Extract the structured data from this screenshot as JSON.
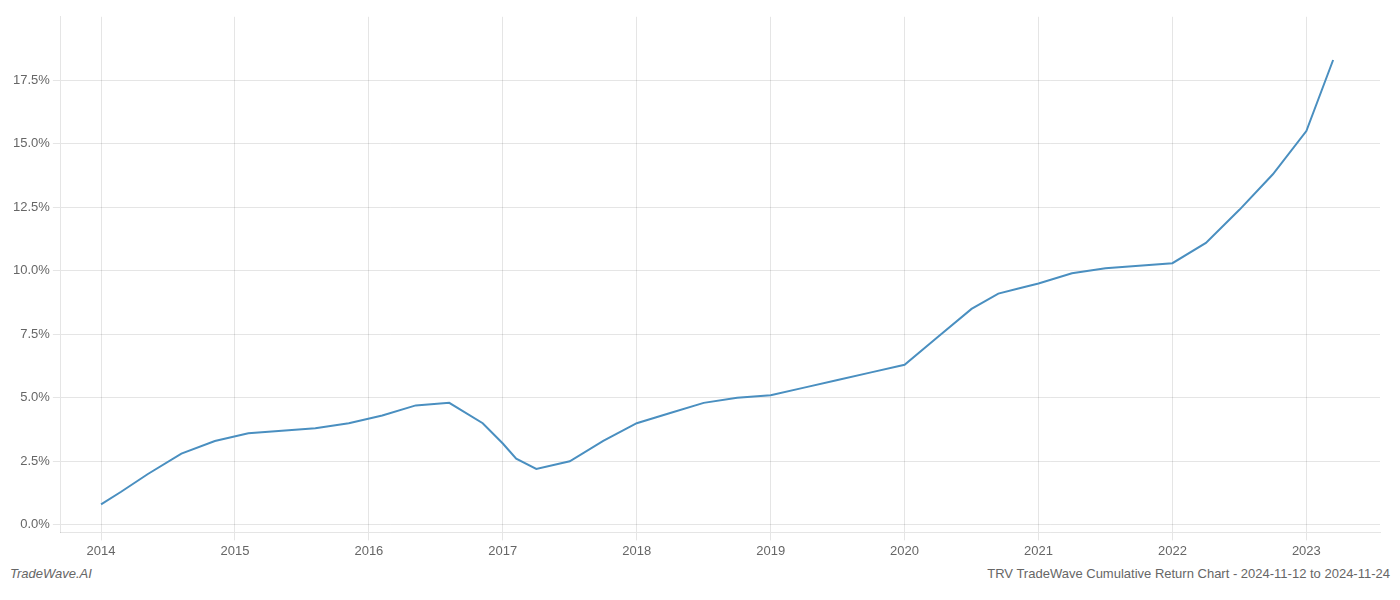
{
  "chart_data": {
    "type": "line",
    "x": [
      2014.0,
      2014.15,
      2014.35,
      2014.6,
      2014.85,
      2015.1,
      2015.35,
      2015.6,
      2015.85,
      2016.1,
      2016.35,
      2016.6,
      2016.85,
      2017.0,
      2017.1,
      2017.25,
      2017.5,
      2017.75,
      2018.0,
      2018.25,
      2018.5,
      2018.75,
      2019.0,
      2019.25,
      2019.5,
      2019.75,
      2020.0,
      2020.25,
      2020.5,
      2020.7,
      2020.85,
      2021.0,
      2021.25,
      2021.5,
      2021.75,
      2022.0,
      2022.25,
      2022.5,
      2022.75,
      2023.0,
      2023.2
    ],
    "values": [
      0.008,
      0.013,
      0.02,
      0.028,
      0.033,
      0.036,
      0.037,
      0.038,
      0.04,
      0.043,
      0.047,
      0.048,
      0.04,
      0.032,
      0.026,
      0.022,
      0.025,
      0.033,
      0.04,
      0.044,
      0.048,
      0.05,
      0.051,
      0.054,
      0.057,
      0.06,
      0.063,
      0.074,
      0.085,
      0.091,
      0.093,
      0.095,
      0.099,
      0.101,
      0.102,
      0.103,
      0.111,
      0.124,
      0.138,
      0.155,
      0.183
    ],
    "color": "#4a8fc0",
    "xlim": [
      2013.7,
      2023.55
    ],
    "ylim": [
      -0.003,
      0.2
    ],
    "xticks": [
      2014,
      2015,
      2016,
      2017,
      2018,
      2019,
      2020,
      2021,
      2022,
      2023
    ],
    "yticks": [
      {
        "value": 0.0,
        "label": "0.0%"
      },
      {
        "value": 0.025,
        "label": "2.5%"
      },
      {
        "value": 0.05,
        "label": "5.0%"
      },
      {
        "value": 0.075,
        "label": "7.5%"
      },
      {
        "value": 0.1,
        "label": "10.0%"
      },
      {
        "value": 0.125,
        "label": "12.5%"
      },
      {
        "value": 0.15,
        "label": "15.0%"
      },
      {
        "value": 0.175,
        "label": "17.5%"
      }
    ],
    "grid": true,
    "annotations": [
      "TradeWave.AI",
      "TRV TradeWave Cumulative Return Chart - 2024-11-12 to 2024-11-24"
    ]
  }
}
